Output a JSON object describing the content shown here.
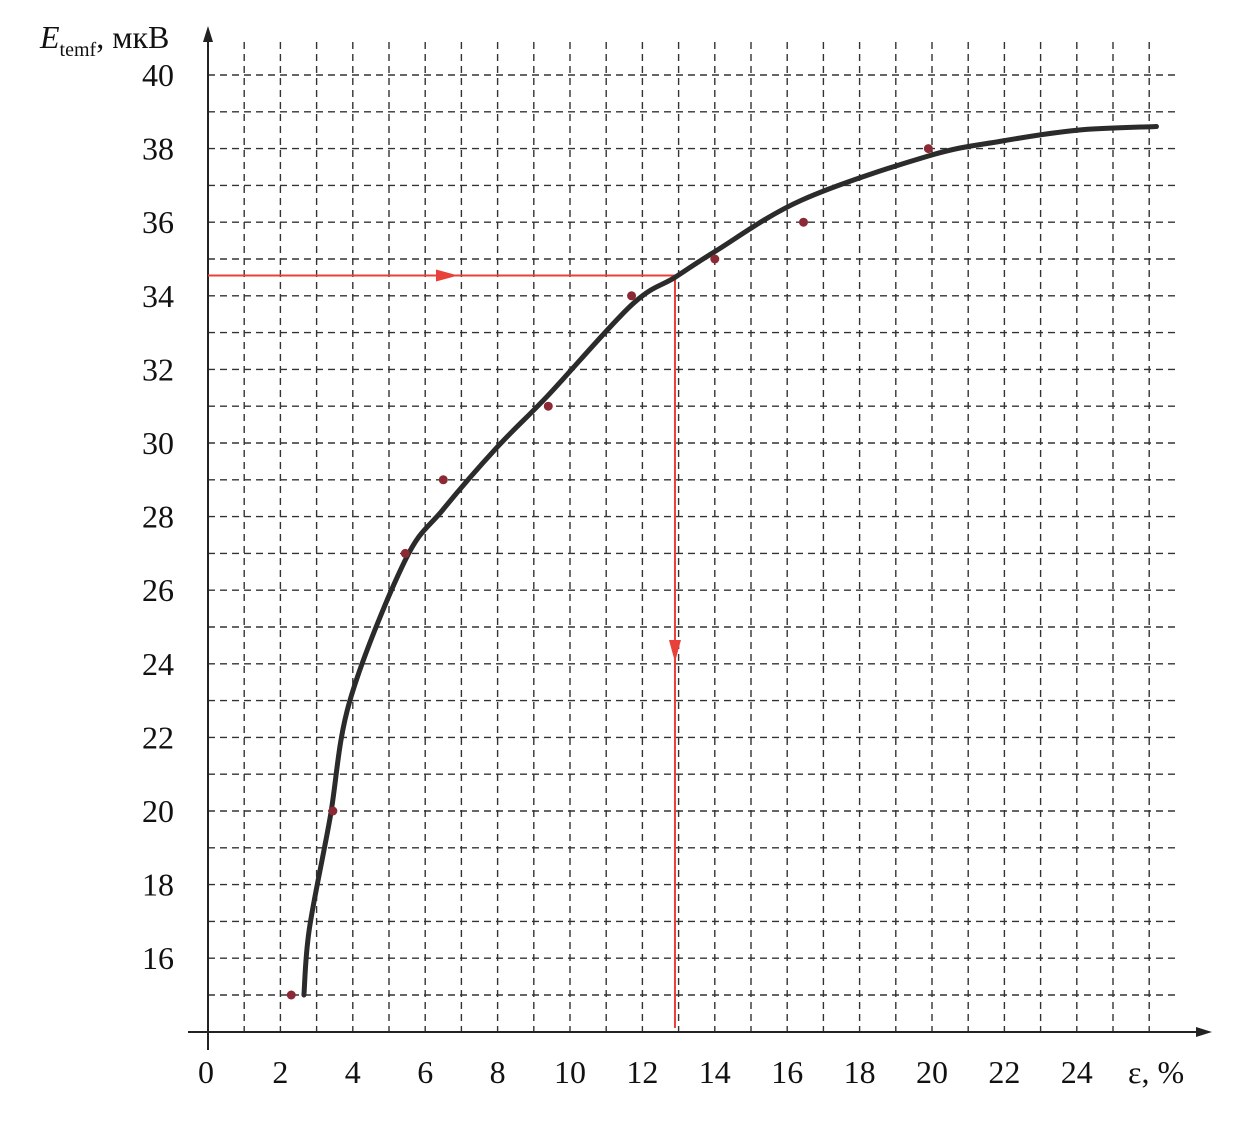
{
  "chart_data": {
    "type": "scatter",
    "ylabel": {
      "symbol": "E",
      "subscript": "temf",
      "unit": ", мкВ"
    },
    "xlabel": "ε, %",
    "xlim": [
      0,
      26.5
    ],
    "ylim": [
      14,
      41
    ],
    "x_ticks": [
      0,
      2,
      4,
      6,
      8,
      10,
      12,
      14,
      16,
      18,
      20,
      22,
      24
    ],
    "y_ticks": [
      16,
      18,
      20,
      22,
      24,
      26,
      28,
      30,
      32,
      34,
      36,
      38,
      40
    ],
    "grid": true,
    "grid_style": "dashed, every 1 unit",
    "points": [
      {
        "x": 2.3,
        "y": 15
      },
      {
        "x": 3.45,
        "y": 20
      },
      {
        "x": 5.45,
        "y": 27
      },
      {
        "x": 6.5,
        "y": 29
      },
      {
        "x": 9.4,
        "y": 31
      },
      {
        "x": 11.7,
        "y": 34
      },
      {
        "x": 14.0,
        "y": 35
      },
      {
        "x": 16.45,
        "y": 36
      },
      {
        "x": 19.9,
        "y": 38
      }
    ],
    "fit_curve": [
      [
        2.65,
        15
      ],
      [
        2.8,
        16.8
      ],
      [
        3.37,
        19.8
      ],
      [
        3.92,
        23.0
      ],
      [
        5.44,
        26.8
      ],
      [
        6.5,
        28.2
      ],
      [
        8.0,
        29.9
      ],
      [
        9.4,
        31.3
      ],
      [
        11.7,
        33.75
      ],
      [
        12.9,
        34.5
      ],
      [
        14.0,
        35.2
      ],
      [
        16.4,
        36.6
      ],
      [
        19.9,
        37.8
      ],
      [
        21.9,
        38.2
      ],
      [
        24.0,
        38.5
      ],
      [
        26.2,
        38.6
      ]
    ],
    "reading_line": {
      "y": 34.55,
      "x": 12.9
    },
    "colors": {
      "points": "#8b2a35",
      "curve": "#2b2b2b",
      "reading_line": "#e8413a",
      "grid": "#333333"
    }
  }
}
